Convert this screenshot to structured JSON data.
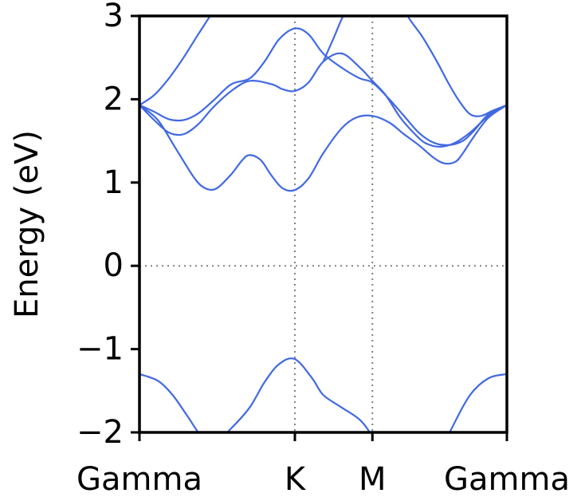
{
  "chart_data": {
    "type": "line",
    "title": "",
    "xlabel": "",
    "ylabel": "Energy (eV)",
    "ylim": [
      -2,
      3
    ],
    "xlim": [
      0,
      1
    ],
    "grid": false,
    "yticks": [
      -2,
      -1,
      0,
      1,
      2,
      3
    ],
    "ytick_labels": [
      "−2",
      "−1",
      "0",
      "1",
      "2",
      "3"
    ],
    "xticks": [
      {
        "label": "Gamma",
        "pos": 0.0
      },
      {
        "label": "K",
        "pos": 0.423
      },
      {
        "label": "M",
        "pos": 0.634
      },
      {
        "label": "Gamma",
        "pos": 1.0
      }
    ],
    "reference_lines": {
      "horizontal": [
        0
      ],
      "vertical": [
        0.423,
        0.634
      ]
    },
    "series_color": "#4169e1",
    "series": [
      {
        "x": [
          0,
          0.05,
          0.09,
          0.13,
          0.17,
          0.21,
          0.25,
          0.3,
          0.34,
          0.38,
          0.423,
          0.47,
          0.5,
          0.55,
          0.6,
          0.634,
          0.68,
          0.73,
          0.79,
          0.85,
          0.9,
          0.95,
          1.0
        ],
        "y": [
          -1.3,
          -1.38,
          -1.55,
          -1.8,
          -2.05,
          -2.1,
          -1.95,
          -1.7,
          -1.4,
          -1.18,
          -1.12,
          -1.35,
          -1.55,
          -1.7,
          -1.85,
          -2.05,
          -2.4,
          -2.6,
          -2.5,
          -1.95,
          -1.55,
          -1.35,
          -1.3
        ]
      },
      {
        "x": [
          0,
          0.05,
          0.1,
          0.15,
          0.18,
          0.21,
          0.25,
          0.28,
          0.3,
          0.33,
          0.36,
          0.39,
          0.423,
          0.46,
          0.5,
          0.55,
          0.59,
          0.634,
          0.68,
          0.72,
          0.76,
          0.8,
          0.83,
          0.86,
          0.88,
          0.91,
          0.95,
          1.0
        ],
        "y": [
          1.93,
          1.75,
          1.4,
          1.05,
          0.93,
          0.93,
          1.1,
          1.27,
          1.33,
          1.27,
          1.08,
          0.93,
          0.91,
          1.05,
          1.35,
          1.65,
          1.78,
          1.8,
          1.72,
          1.58,
          1.45,
          1.3,
          1.23,
          1.25,
          1.35,
          1.55,
          1.78,
          1.93
        ]
      },
      {
        "x": [
          0,
          0.04,
          0.08,
          0.12,
          0.16,
          0.2,
          0.25,
          0.3,
          0.36,
          0.39,
          0.423,
          0.46,
          0.5,
          0.55,
          0.6,
          0.634,
          0.67,
          0.71,
          0.75,
          0.78,
          0.82,
          0.86,
          0.9,
          0.95,
          1.0
        ],
        "y": [
          1.93,
          1.75,
          1.6,
          1.58,
          1.7,
          1.9,
          2.1,
          2.22,
          2.18,
          2.12,
          2.1,
          2.2,
          2.45,
          2.55,
          2.38,
          2.22,
          2.05,
          1.78,
          1.58,
          1.47,
          1.43,
          1.48,
          1.6,
          1.8,
          1.93
        ]
      },
      {
        "x": [
          0,
          0.04,
          0.08,
          0.12,
          0.16,
          0.2,
          0.25,
          0.3,
          0.34,
          0.38,
          0.423,
          0.46,
          0.5,
          0.55,
          0.6,
          0.634,
          0.68,
          0.72,
          0.76,
          0.8,
          0.84,
          0.88,
          0.91,
          0.95,
          1.0
        ],
        "y": [
          1.93,
          1.85,
          1.76,
          1.75,
          1.83,
          1.98,
          2.18,
          2.25,
          2.45,
          2.72,
          2.85,
          2.78,
          2.55,
          2.38,
          2.25,
          2.2,
          2.0,
          1.8,
          1.6,
          1.48,
          1.45,
          1.5,
          1.62,
          1.82,
          1.93
        ]
      },
      {
        "x": [
          0,
          0.04,
          0.08,
          0.12,
          0.16,
          0.2,
          0.24
        ],
        "y": [
          1.93,
          2.05,
          2.25,
          2.5,
          2.78,
          3.05,
          3.3
        ]
      },
      {
        "x": [
          0.5,
          0.53,
          0.56,
          0.6
        ],
        "y": [
          2.45,
          2.75,
          3.05,
          3.3
        ]
      },
      {
        "x": [
          0.7,
          0.73,
          0.77,
          0.81,
          0.84,
          0.87,
          0.9,
          0.93,
          0.96,
          1.0
        ],
        "y": [
          3.3,
          3.0,
          2.75,
          2.45,
          2.2,
          1.98,
          1.82,
          1.8,
          1.86,
          1.93
        ]
      }
    ]
  }
}
